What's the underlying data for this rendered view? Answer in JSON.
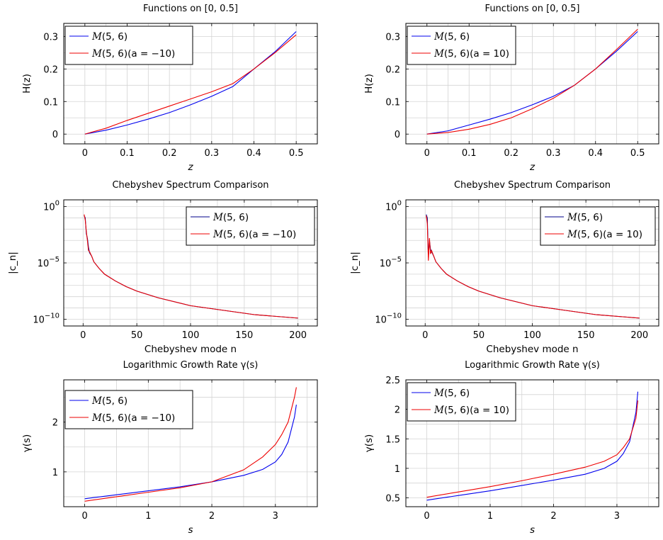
{
  "chart_data": [
    {
      "type": "line",
      "title": "Functions on [0, 0.5]",
      "xlabel": "z",
      "ylabel": "H(z)",
      "xlim": [
        -0.05,
        0.55
      ],
      "ylim": [
        -0.03,
        0.34
      ],
      "xscale": "linear",
      "yscale": "linear",
      "xticks": [
        0,
        0.1,
        0.2,
        0.3,
        0.4,
        0.5
      ],
      "xtick_labels": [
        "0",
        "0.1",
        "0.2",
        "0.3",
        "0.4",
        "0.5"
      ],
      "yticks": [
        0,
        0.1,
        0.2,
        0.3
      ],
      "ytick_labels": [
        "0",
        "0.1",
        "0.2",
        "0.3"
      ],
      "grid": true,
      "legend_position": "top-left",
      "series": [
        {
          "name": "M(5, 6)",
          "color": "#0000ee",
          "x": [
            0,
            0.05,
            0.1,
            0.15,
            0.2,
            0.25,
            0.3,
            0.35,
            0.4,
            0.45,
            0.5
          ],
          "y": [
            0,
            0.012,
            0.028,
            0.046,
            0.066,
            0.09,
            0.116,
            0.146,
            0.2,
            0.253,
            0.315
          ]
        },
        {
          "name": "M(5, 6)(a = −10)",
          "color": "#ee0000",
          "x": [
            0,
            0.05,
            0.1,
            0.15,
            0.2,
            0.25,
            0.3,
            0.35,
            0.4,
            0.45,
            0.5
          ],
          "y": [
            0,
            0.018,
            0.042,
            0.064,
            0.086,
            0.108,
            0.13,
            0.155,
            0.2,
            0.25,
            0.305
          ]
        }
      ]
    },
    {
      "type": "line",
      "title": "Functions on [0, 0.5]",
      "xlabel": "z",
      "ylabel": "H(z)",
      "xlim": [
        -0.05,
        0.55
      ],
      "ylim": [
        -0.03,
        0.34
      ],
      "xscale": "linear",
      "yscale": "linear",
      "xticks": [
        0,
        0.1,
        0.2,
        0.3,
        0.4,
        0.5
      ],
      "xtick_labels": [
        "0",
        "0.1",
        "0.2",
        "0.3",
        "0.4",
        "0.5"
      ],
      "yticks": [
        0,
        0.1,
        0.2,
        0.3
      ],
      "ytick_labels": [
        "0",
        "0.1",
        "0.2",
        "0.3"
      ],
      "grid": true,
      "legend_position": "top-left",
      "series": [
        {
          "name": "M(5, 6)",
          "color": "#0000ee",
          "x": [
            0,
            0.05,
            0.1,
            0.15,
            0.2,
            0.25,
            0.3,
            0.35,
            0.4,
            0.45,
            0.5
          ],
          "y": [
            0,
            0.01,
            0.028,
            0.046,
            0.066,
            0.09,
            0.116,
            0.15,
            0.2,
            0.255,
            0.315
          ]
        },
        {
          "name": "M(5, 6)(a = 10)",
          "color": "#ee0000",
          "x": [
            0,
            0.05,
            0.1,
            0.15,
            0.2,
            0.25,
            0.3,
            0.35,
            0.4,
            0.45,
            0.5
          ],
          "y": [
            0,
            0.005,
            0.015,
            0.03,
            0.05,
            0.078,
            0.11,
            0.15,
            0.2,
            0.26,
            0.322
          ]
        }
      ]
    },
    {
      "type": "line",
      "title": "Chebyshev Spectrum Comparison",
      "xlabel": "Chebyshev mode n",
      "ylabel": "|c_n|",
      "xlim": [
        -18,
        218
      ],
      "ylim_log10": [
        -10.6,
        0.6
      ],
      "xscale": "linear",
      "yscale": "log",
      "xticks": [
        0,
        50,
        100,
        150,
        200
      ],
      "xtick_labels": [
        "0",
        "50",
        "100",
        "150",
        "200"
      ],
      "ytick_exponents": [
        0,
        -5,
        -10
      ],
      "ytick_labels": [
        "10",
        "10",
        "10"
      ],
      "ytick_label_exponents": [
        "0",
        "−5",
        "−10"
      ],
      "grid": true,
      "legend_position": "top-right",
      "series": [
        {
          "name": "M(5, 6)",
          "color": "#00008b",
          "x": [
            1,
            2,
            3,
            4,
            5,
            6,
            8,
            10,
            15,
            20,
            30,
            40,
            50,
            70,
            100,
            130,
            160,
            200
          ],
          "log10y": [
            -0.8,
            -1.0,
            -2.4,
            -2.8,
            -3.6,
            -4.1,
            -4.4,
            -4.9,
            -5.5,
            -6.0,
            -6.6,
            -7.1,
            -7.5,
            -8.1,
            -8.8,
            -9.2,
            -9.6,
            -9.9
          ]
        },
        {
          "name": "M(5, 6)(a = −10)",
          "color": "#ee0000",
          "x": [
            1,
            2,
            3,
            4,
            5,
            6,
            8,
            10,
            15,
            20,
            30,
            40,
            50,
            70,
            100,
            130,
            160,
            200
          ],
          "log10y": [
            -0.7,
            -1.2,
            -2.2,
            -3.0,
            -3.9,
            -4.0,
            -4.4,
            -4.9,
            -5.5,
            -6.0,
            -6.6,
            -7.1,
            -7.5,
            -8.1,
            -8.8,
            -9.2,
            -9.6,
            -9.9
          ]
        }
      ]
    },
    {
      "type": "line",
      "title": "Chebyshev Spectrum Comparison",
      "xlabel": "Chebyshev mode n",
      "ylabel": "|c_n|",
      "xlim": [
        -18,
        218
      ],
      "ylim_log10": [
        -10.6,
        0.6
      ],
      "xscale": "linear",
      "yscale": "log",
      "xticks": [
        0,
        50,
        100,
        150,
        200
      ],
      "xtick_labels": [
        "0",
        "50",
        "100",
        "150",
        "200"
      ],
      "ytick_exponents": [
        0,
        -5,
        -10
      ],
      "ytick_labels": [
        "10",
        "10",
        "10"
      ],
      "ytick_label_exponents": [
        "0",
        "−5",
        "−10"
      ],
      "grid": true,
      "legend_position": "top-right",
      "series": [
        {
          "name": "M(5, 6)",
          "color": "#00008b",
          "x": [
            1,
            2,
            3,
            4,
            5,
            6,
            8,
            10,
            15,
            20,
            30,
            40,
            50,
            70,
            100,
            130,
            160,
            200
          ],
          "log10y": [
            -0.7,
            -1.0,
            -4.5,
            -3.0,
            -3.8,
            -4.0,
            -4.4,
            -4.9,
            -5.5,
            -6.0,
            -6.6,
            -7.1,
            -7.5,
            -8.1,
            -8.8,
            -9.2,
            -9.6,
            -9.9
          ]
        },
        {
          "name": "M(5, 6)(a = 10)",
          "color": "#ee0000",
          "x": [
            1,
            2,
            3,
            4,
            5,
            6,
            8,
            10,
            15,
            20,
            30,
            40,
            50,
            70,
            100,
            130,
            160,
            200
          ],
          "log10y": [
            -0.8,
            -1.5,
            -4.8,
            -2.8,
            -4.2,
            -3.9,
            -4.4,
            -4.9,
            -5.5,
            -6.0,
            -6.6,
            -7.1,
            -7.5,
            -8.1,
            -8.8,
            -9.2,
            -9.6,
            -9.9
          ]
        }
      ]
    },
    {
      "type": "line",
      "title": "Logarithmic Growth Rate γ(s)",
      "xlabel": "s",
      "ylabel": "γ(s)",
      "xlim": [
        -0.33,
        3.66
      ],
      "ylim": [
        0.3,
        2.85
      ],
      "xscale": "linear",
      "yscale": "linear",
      "xticks": [
        0,
        1,
        2,
        3
      ],
      "xtick_labels": [
        "0",
        "1",
        "2",
        "3"
      ],
      "yticks": [
        1,
        2
      ],
      "ytick_labels": [
        "1",
        "2"
      ],
      "grid": true,
      "legend_position": "top-left",
      "series": [
        {
          "name": "M(5, 6)",
          "color": "#0000ee",
          "x": [
            0,
            0.5,
            1,
            1.5,
            2,
            2.5,
            2.8,
            3.0,
            3.1,
            3.2,
            3.3,
            3.33
          ],
          "y": [
            0.46,
            0.54,
            0.62,
            0.7,
            0.8,
            0.93,
            1.05,
            1.2,
            1.35,
            1.6,
            2.1,
            2.35
          ]
        },
        {
          "name": "M(5, 6)(a = −10)",
          "color": "#ee0000",
          "x": [
            0,
            0.5,
            1,
            1.5,
            2,
            2.5,
            2.8,
            3.0,
            3.1,
            3.2,
            3.3,
            3.33
          ],
          "y": [
            0.41,
            0.5,
            0.59,
            0.68,
            0.8,
            1.04,
            1.3,
            1.55,
            1.75,
            2.0,
            2.5,
            2.7
          ]
        }
      ]
    },
    {
      "type": "line",
      "title": "Logarithmic Growth Rate γ(s)",
      "xlabel": "s",
      "ylabel": "γ(s)",
      "xlim": [
        -0.33,
        3.66
      ],
      "ylim": [
        0.35,
        2.5
      ],
      "xscale": "linear",
      "yscale": "linear",
      "xticks": [
        0,
        1,
        2,
        3
      ],
      "xtick_labels": [
        "0",
        "1",
        "2",
        "3"
      ],
      "yticks": [
        0.5,
        1,
        1.5,
        2,
        2.5
      ],
      "ytick_labels": [
        "0.5",
        "1",
        "1.5",
        "2",
        "2.5"
      ],
      "grid": true,
      "legend_position": "top-left",
      "series": [
        {
          "name": "M(5, 6)",
          "color": "#0000ee",
          "x": [
            0,
            0.5,
            1,
            1.5,
            2,
            2.5,
            2.8,
            3.0,
            3.1,
            3.2,
            3.3,
            3.33
          ],
          "y": [
            0.46,
            0.54,
            0.62,
            0.71,
            0.8,
            0.9,
            1.0,
            1.12,
            1.25,
            1.45,
            1.95,
            2.3
          ]
        },
        {
          "name": "M(5, 6)(a = 10)",
          "color": "#ee0000",
          "x": [
            0,
            0.5,
            1,
            1.5,
            2,
            2.5,
            2.8,
            3.0,
            3.1,
            3.2,
            3.3,
            3.33
          ],
          "y": [
            0.51,
            0.6,
            0.69,
            0.79,
            0.9,
            1.02,
            1.12,
            1.23,
            1.35,
            1.5,
            1.85,
            2.15
          ]
        }
      ]
    }
  ]
}
